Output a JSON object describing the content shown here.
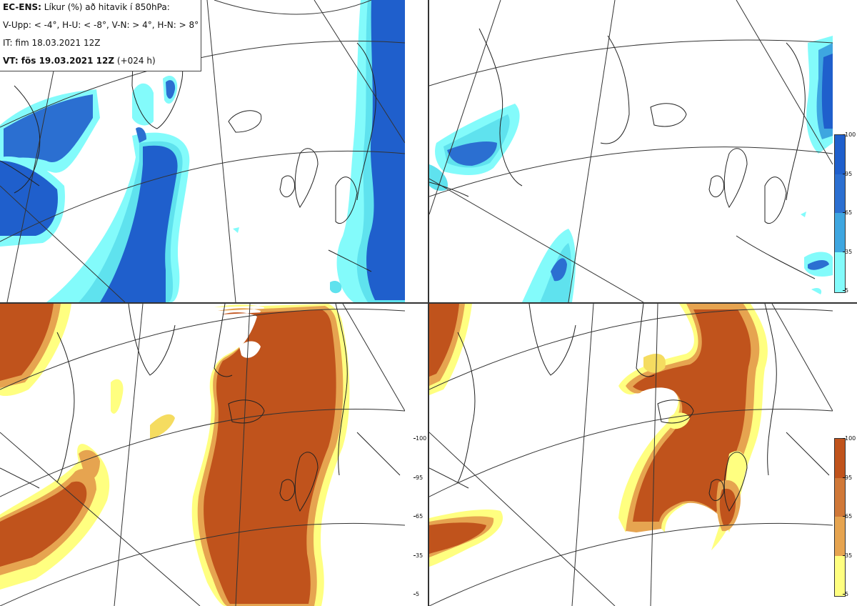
{
  "legend": {
    "line1_bold": "EC-ENS:",
    "line1_rest": " Líkur (%) að hitavik í 850hPa:",
    "line2": "V-Upp: < -4°, H-U: < -8°, V-N: > 4°, H-N: > 8°",
    "line3": "IT: fim 18.03.2021 12Z",
    "line4_bold": "VT: fös 19.03.2021 12Z",
    "line4_rest": " (+024 h)"
  },
  "colorbar_ticks": [
    "100",
    "95",
    "65",
    "35",
    "5"
  ],
  "colors": {
    "blue_scale": [
      "#83fbfb",
      "#5fe2ee",
      "#3ea6e0",
      "#2b6fd1",
      "#1f5fcc"
    ],
    "orange_scale": [
      "#ffff80",
      "#f5dc60",
      "#e6a450",
      "#d07838",
      "#c0531c"
    ],
    "coast": "#222222",
    "grid": "#333333"
  },
  "panels": [
    {
      "name": "top-left",
      "variable": "V-Upp",
      "scale": "blue"
    },
    {
      "name": "top-right",
      "variable": "H-U",
      "scale": "blue"
    },
    {
      "name": "bottom-left",
      "variable": "V-N",
      "scale": "orange"
    },
    {
      "name": "bottom-right",
      "variable": "H-N",
      "scale": "orange"
    }
  ]
}
